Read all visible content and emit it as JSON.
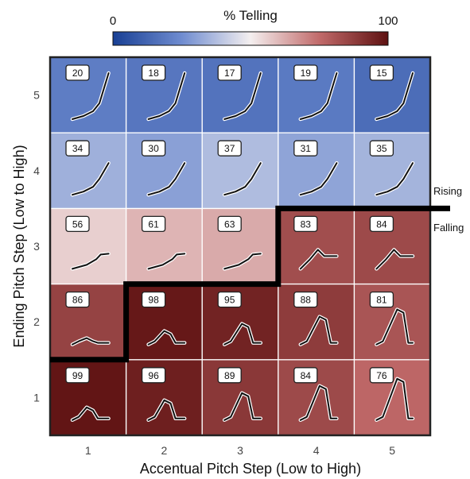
{
  "chart_data": {
    "type": "heatmap",
    "colorbar": {
      "title": "% Telling",
      "min_label": "0",
      "max_label": "100",
      "range": [
        0,
        100
      ],
      "low_color": "#2a4fa3",
      "mid_color": "#f4efef",
      "high_color": "#671515"
    },
    "xlabel": "Accentual Pitch Step (Low to High)",
    "ylabel": "Ending Pitch Step (Low to High)",
    "x_ticks": [
      "1",
      "2",
      "3",
      "4",
      "5"
    ],
    "y_ticks": [
      "1",
      "2",
      "3",
      "4",
      "5"
    ],
    "values_by_row_top_to_bottom": [
      [
        20,
        18,
        17,
        19,
        15
      ],
      [
        34,
        30,
        37,
        31,
        35
      ],
      [
        56,
        61,
        63,
        83,
        84
      ],
      [
        86,
        98,
        95,
        88,
        81
      ],
      [
        99,
        96,
        89,
        84,
        76
      ]
    ],
    "boundary_labels": {
      "upper": "Rising",
      "lower": "Falling"
    },
    "boundary_steps_after_x": [
      1.5,
      2.5,
      2.5,
      3.5,
      3.5
    ],
    "grid": true
  }
}
